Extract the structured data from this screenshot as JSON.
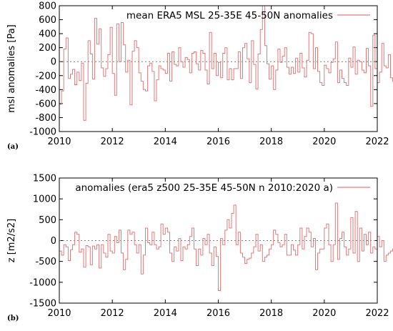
{
  "chart_data": [
    {
      "type": "line",
      "panel_label": "(a)",
      "series": [
        {
          "name": "mean ERA5 MSL 25-35E 45-50N anomalies",
          "color": "#e37a7a"
        }
      ],
      "ylabel": "msl anomalies [Pa]",
      "xlim": [
        2010,
        2022
      ],
      "ylim": [
        -1000,
        800
      ],
      "xticks": [
        2010,
        2012,
        2014,
        2016,
        2018,
        2020,
        2022
      ],
      "yticks": [
        -1000,
        -800,
        -600,
        -400,
        -200,
        0,
        200,
        400,
        600,
        800
      ],
      "legend": "top-right",
      "zero_line": true,
      "x_start": 2010.0,
      "x_step": 0.08333,
      "values": [
        -610,
        -420,
        180,
        340,
        -240,
        -180,
        -110,
        -330,
        -150,
        -270,
        -20,
        -840,
        -310,
        300,
        110,
        -250,
        620,
        250,
        470,
        -90,
        -210,
        -100,
        100,
        490,
        -170,
        -480,
        540,
        0,
        560,
        240,
        -150,
        20,
        -620,
        150,
        300,
        200,
        -160,
        -280,
        -400,
        -420,
        -60,
        -20,
        -140,
        -560,
        -260,
        -60,
        -100,
        -120,
        -170,
        120,
        -280,
        140,
        -40,
        -60,
        200,
        0,
        -80,
        60,
        30,
        -160,
        120,
        140,
        -30,
        -120,
        160,
        120,
        -120,
        -320,
        420,
        -100,
        120,
        -200,
        -10,
        -230,
        120,
        200,
        -260,
        -100,
        -260,
        -100,
        -100,
        140,
        -240,
        200,
        260,
        40,
        -300,
        300,
        -40,
        -390,
        110,
        460,
        800,
        230,
        -30,
        -250,
        -60,
        -400,
        -120,
        180,
        -10,
        80,
        200,
        -80,
        -180,
        -80,
        -170,
        50,
        -150,
        120,
        -90,
        -220,
        20,
        420,
        400,
        -100,
        200,
        -140,
        -300,
        -340,
        -50,
        -100,
        -160,
        -10,
        40,
        280,
        -300,
        -120,
        -240,
        -300,
        -340,
        50,
        -80,
        210,
        -180,
        20,
        0,
        -120,
        -160,
        190,
        -60,
        -640,
        380,
        -100,
        -300,
        -150,
        260,
        -60,
        -90,
        100,
        -230,
        -280,
        460,
        -180,
        -100,
        -360,
        140,
        300,
        -40,
        -130,
        -170,
        -160,
        -160,
        -160,
        -180,
        80,
        -200,
        300,
        -300,
        420,
        -40,
        540,
        280,
        40,
        200,
        -180,
        120,
        -60,
        -290,
        -310,
        -320,
        -10,
        -320,
        210,
        -120,
        400,
        -320,
        -70,
        150,
        -230,
        -300,
        -80,
        -90,
        100,
        -20,
        -290,
        -240,
        -150,
        -260,
        -440,
        520,
        -200,
        40,
        170,
        -120,
        -170,
        -200,
        -50,
        -190,
        -40,
        160,
        40,
        150,
        -350,
        -190,
        -180,
        -120,
        -60,
        -390,
        -20,
        -160,
        -10,
        -140,
        160,
        120,
        -130,
        -90,
        -380,
        -150,
        0,
        580,
        180,
        -130,
        -310,
        -120,
        -100,
        120,
        -10,
        570,
        190,
        580,
        300,
        300,
        300,
        300,
        300,
        300
      ]
    },
    {
      "type": "line",
      "panel_label": "(b)",
      "series": [
        {
          "name": "anomalies (era5 z500 25-35E 45-50N n 2010:2020 a)",
          "color": "#e37a7a"
        }
      ],
      "ylabel": "z [m2/s2]",
      "xlim": [
        2010,
        2022
      ],
      "ylim": [
        -1500,
        1500
      ],
      "xticks": [
        2010,
        2012,
        2014,
        2016,
        2018,
        2020,
        2022
      ],
      "yticks": [
        -1500,
        -1000,
        -500,
        0,
        500,
        1000,
        1500
      ],
      "legend": "top-right",
      "zero_line": true,
      "x_start": 2010.0,
      "x_step": 0.08333,
      "values": [
        -250,
        -350,
        -100,
        -150,
        -480,
        -220,
        -100,
        200,
        150,
        -280,
        -200,
        -640,
        -120,
        -150,
        -580,
        -130,
        -200,
        -100,
        -660,
        -100,
        -300,
        -400,
        150,
        -250,
        -300,
        100,
        -50,
        250,
        -300,
        -700,
        -450,
        250,
        150,
        200,
        -100,
        -300,
        -100,
        -800,
        -350,
        300,
        -50,
        -100,
        200,
        -100,
        -200,
        -150,
        400,
        150,
        300,
        200,
        -300,
        -500,
        -150,
        -250,
        50,
        -480,
        -150,
        -200,
        -100,
        100,
        300,
        -200,
        -600,
        -200,
        -350,
        50,
        -100,
        150,
        -300,
        -600,
        -150,
        -380,
        -1200,
        50,
        -100,
        250,
        500,
        300,
        650,
        850,
        -100,
        200,
        -300,
        -400,
        -550,
        -450,
        -420,
        -300,
        -150,
        150,
        -250,
        -100,
        -500,
        -400,
        -350,
        -200,
        -100,
        250,
        150,
        -50,
        -150,
        -100,
        150,
        -350,
        -350,
        -100,
        -230,
        -350,
        -100,
        300,
        -200,
        100,
        300,
        200,
        -150,
        50,
        -700,
        -300,
        -200,
        -200,
        300,
        400,
        -100,
        -500,
        -100,
        900,
        -450,
        50,
        200,
        -150,
        -350,
        -200,
        550,
        -300,
        700,
        -500,
        300,
        -250,
        150,
        -100,
        200,
        -300,
        -150,
        -200,
        100,
        -150,
        0,
        -500,
        -350,
        -300,
        -250,
        -200,
        200,
        100,
        -250,
        150,
        500,
        350,
        -600,
        -200,
        200,
        150,
        -400,
        -200,
        0,
        300,
        -120,
        -400,
        -300,
        550,
        150,
        -200,
        -100,
        -200,
        -600,
        -150,
        100,
        -350,
        800,
        350,
        -50,
        300,
        -200,
        -350,
        -600,
        -300,
        0,
        -200,
        -100,
        -400,
        150,
        250,
        -100,
        -620,
        -100,
        -350,
        -400,
        -600,
        100,
        150,
        -300,
        200,
        -400,
        50,
        -300,
        150,
        250,
        -150,
        -150,
        -450,
        -100,
        200,
        -300,
        -200,
        -600,
        -250,
        -200,
        -100,
        -50,
        100,
        -200,
        1050,
        650,
        150,
        -400,
        -100,
        -300,
        -200,
        -350,
        100,
        -100,
        -200,
        -350,
        -50,
        -300,
        -100,
        600,
        300,
        300,
        300,
        300,
        500,
        500,
        500
      ]
    }
  ]
}
